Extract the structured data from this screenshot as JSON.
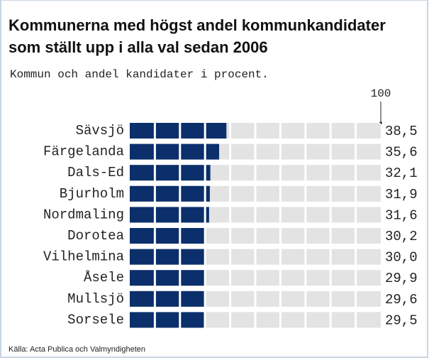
{
  "chart_data": {
    "type": "segmented-bar",
    "title": "Kommunerna med högst andel kommunkandidater som ställt upp i alla val sedan 2006",
    "subtitle": "Kommun och andel kandidater i procent.",
    "source": "Källa: Acta Publica och Valmyndigheten",
    "categories": [
      "Sävsjö",
      "Färgelanda",
      "Dals-Ed",
      "Bjurholm",
      "Nordmaling",
      "Dorotea",
      "Vilhelmina",
      "Åsele",
      "Mullsjö",
      "Sorsele"
    ],
    "values": [
      38.5,
      35.6,
      32.1,
      31.9,
      31.6,
      30.2,
      30.0,
      29.9,
      29.6,
      29.5
    ],
    "value_labels": [
      "38,5",
      "35,6",
      "32,1",
      "31,9",
      "31,6",
      "30,2",
      "30,0",
      "29,9",
      "29,6",
      "29,5"
    ],
    "color": "#0b2f6b",
    "background_color": "#e3e3e3",
    "xlim": [
      0,
      100
    ],
    "xticks": [
      100
    ]
  }
}
